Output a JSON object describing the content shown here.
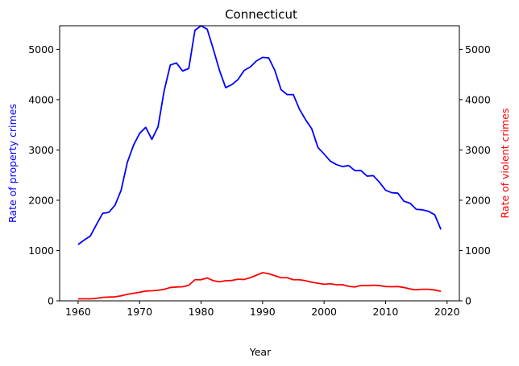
{
  "chart_data": {
    "type": "line",
    "title": "Connecticut",
    "xlabel": "Year",
    "ylabel_left": "Rate of property crimes",
    "ylabel_right": "Rate of violent crimes",
    "xlim": [
      1957,
      2022
    ],
    "ylim": [
      0,
      5470
    ],
    "ylim_right": [
      0,
      5470
    ],
    "x_ticks": [
      1960,
      1970,
      1980,
      1990,
      2000,
      2010,
      2020
    ],
    "y_ticks": [
      0,
      1000,
      2000,
      3000,
      4000,
      5000
    ],
    "grid": false,
    "colors": {
      "property": "#0000ff",
      "violent": "#ff0000",
      "left_label": "#0000ff",
      "right_label": "#ff0000"
    },
    "series": [
      {
        "name": "Rate of property crimes",
        "axis": "left",
        "color": "#0000ff",
        "x": [
          1960,
          1961,
          1962,
          1963,
          1964,
          1965,
          1966,
          1967,
          1968,
          1969,
          1970,
          1971,
          1972,
          1973,
          1974,
          1975,
          1976,
          1977,
          1978,
          1979,
          1980,
          1981,
          1982,
          1983,
          1984,
          1985,
          1986,
          1987,
          1988,
          1989,
          1990,
          1991,
          1992,
          1993,
          1994,
          1995,
          1996,
          1997,
          1998,
          1999,
          2000,
          2001,
          2002,
          2003,
          2004,
          2005,
          2006,
          2007,
          2008,
          2009,
          2010,
          2011,
          2012,
          2013,
          2014,
          2015,
          2016,
          2017,
          2018,
          2019
        ],
        "y": [
          1120,
          1210,
          1290,
          1520,
          1740,
          1760,
          1900,
          2200,
          2750,
          3090,
          3330,
          3450,
          3210,
          3460,
          4180,
          4690,
          4730,
          4570,
          4620,
          5380,
          5470,
          5400,
          5000,
          4580,
          4240,
          4300,
          4400,
          4580,
          4650,
          4770,
          4840,
          4830,
          4580,
          4200,
          4100,
          4100,
          3810,
          3600,
          3420,
          3050,
          2920,
          2780,
          2710,
          2670,
          2690,
          2590,
          2590,
          2480,
          2490,
          2360,
          2200,
          2150,
          2140,
          1980,
          1940,
          1820,
          1810,
          1780,
          1710,
          1420
        ]
      },
      {
        "name": "Rate of violent crimes",
        "axis": "right",
        "color": "#ff0000",
        "x": [
          1960,
          1961,
          1962,
          1963,
          1964,
          1965,
          1966,
          1967,
          1968,
          1969,
          1970,
          1971,
          1972,
          1973,
          1974,
          1975,
          1976,
          1977,
          1978,
          1979,
          1980,
          1981,
          1982,
          1983,
          1984,
          1985,
          1986,
          1987,
          1988,
          1989,
          1990,
          1991,
          1992,
          1993,
          1994,
          1995,
          1996,
          1997,
          1998,
          1999,
          2000,
          2001,
          2002,
          2003,
          2004,
          2005,
          2006,
          2007,
          2008,
          2009,
          2010,
          2011,
          2012,
          2013,
          2014,
          2015,
          2016,
          2017,
          2018,
          2019
        ],
        "y": [
          40,
          40,
          40,
          50,
          70,
          75,
          80,
          100,
          130,
          150,
          170,
          195,
          200,
          210,
          230,
          265,
          275,
          280,
          310,
          420,
          420,
          455,
          400,
          380,
          400,
          405,
          430,
          425,
          460,
          510,
          560,
          540,
          500,
          460,
          460,
          420,
          420,
          400,
          370,
          350,
          330,
          340,
          320,
          320,
          290,
          275,
          305,
          305,
          310,
          305,
          285,
          280,
          285,
          265,
          235,
          220,
          230,
          230,
          215,
          190
        ]
      }
    ]
  }
}
